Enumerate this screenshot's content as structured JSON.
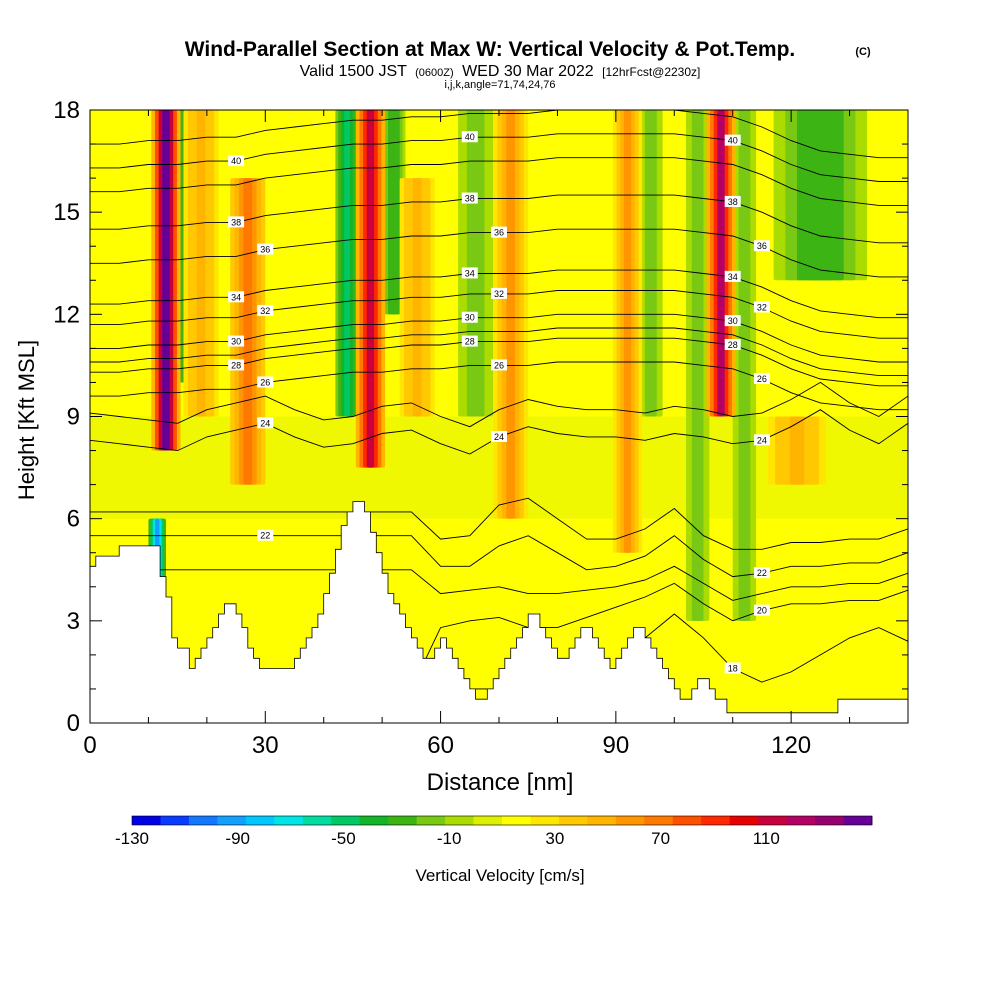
{
  "chart_data": {
    "type": "heatmap",
    "title": "Wind-Parallel Section at Max W: Vertical Velocity & Pot.Temp.",
    "title_mark": "(C)",
    "subtitle_valid": "Valid 1500 JST",
    "subtitle_utc": "(0600Z)",
    "subtitle_date": "WED 30 Mar 2022",
    "subtitle_fcst": "[12hrFcst@2230z]",
    "subtitle_indices": "i,j,k,angle=71,74,24,76",
    "xlabel": "Distance [nm]",
    "ylabel": "Height [Kft MSL]",
    "xlim": [
      0,
      140
    ],
    "ylim": [
      0,
      18
    ],
    "x_ticks": [
      0,
      30,
      60,
      90,
      120
    ],
    "y_ticks": [
      0,
      3,
      6,
      9,
      12,
      15,
      18
    ],
    "colorbar": {
      "label": "Vertical Velocity [cm/s]",
      "min": -130,
      "max": 150,
      "step": 10,
      "tick_labels": [
        -130,
        -90,
        -50,
        -10,
        30,
        70,
        110
      ],
      "colors": [
        "#0000e6",
        "#0a3cff",
        "#1478ff",
        "#14a0ff",
        "#00c8ff",
        "#00e6e6",
        "#00dca0",
        "#00c864",
        "#14b428",
        "#3cb414",
        "#78c814",
        "#aadc00",
        "#dcf000",
        "#ffff00",
        "#ffe600",
        "#ffc800",
        "#ffb400",
        "#ff9600",
        "#ff7800",
        "#ff5000",
        "#ff2800",
        "#e60000",
        "#c8003c",
        "#b40064",
        "#96006e",
        "#640096"
      ]
    },
    "updraft_columns": [
      {
        "x": 13,
        "w": 2.5,
        "z_bottom": 8,
        "z_top": 18,
        "value": 120
      },
      {
        "x": 19,
        "w": 3,
        "z_bottom": 9,
        "z_top": 18,
        "value": 30
      },
      {
        "x": 27,
        "w": 3,
        "z_bottom": 7,
        "z_top": 16,
        "value": 50
      },
      {
        "x": 48,
        "w": 2.5,
        "z_bottom": 7.5,
        "z_top": 18,
        "value": 90
      },
      {
        "x": 56,
        "w": 3,
        "z_bottom": 9,
        "z_top": 16,
        "value": 30
      },
      {
        "x": 72,
        "w": 3,
        "z_bottom": 6,
        "z_top": 18,
        "value": 40
      },
      {
        "x": 92,
        "w": 2.5,
        "z_bottom": 5,
        "z_top": 18,
        "value": 40
      },
      {
        "x": 108,
        "w": 2.5,
        "z_bottom": 9,
        "z_top": 18,
        "value": 100
      },
      {
        "x": 121,
        "w": 5,
        "z_bottom": 7,
        "z_top": 9,
        "value": 30
      }
    ],
    "downdraft_columns": [
      {
        "x": 11.5,
        "w": 1.5,
        "z_bottom": 3.5,
        "z_top": 6,
        "value": -100
      },
      {
        "x": 16,
        "w": 2,
        "z_bottom": 10,
        "z_top": 18,
        "value": -40
      },
      {
        "x": 44,
        "w": 2,
        "z_bottom": 9,
        "z_top": 18,
        "value": -60
      },
      {
        "x": 52,
        "w": 2,
        "z_bottom": 12,
        "z_top": 18,
        "value": -40
      },
      {
        "x": 66,
        "w": 3,
        "z_bottom": 9,
        "z_top": 18,
        "value": -30
      },
      {
        "x": 96,
        "w": 2,
        "z_bottom": 9,
        "z_top": 18,
        "value": -30
      },
      {
        "x": 104,
        "w": 2,
        "z_bottom": 3,
        "z_top": 18,
        "value": -30
      },
      {
        "x": 112,
        "w": 2,
        "z_bottom": 3,
        "z_top": 18,
        "value": -30
      },
      {
        "x": 125,
        "w": 8,
        "z_bottom": 13,
        "z_top": 18,
        "value": -40
      }
    ],
    "theta_contours": [
      {
        "label": "18",
        "z": [
          1.0,
          1.0,
          1.0,
          1.0,
          1.0,
          1.0,
          1.0,
          1.0,
          1.0,
          1.0,
          1.0,
          1.0,
          1.0,
          1.0,
          1.0,
          1.0,
          1.0,
          1.0,
          1.5,
          2.5,
          3.2,
          2.5,
          1.6,
          1.2,
          1.5,
          2.0,
          2.5,
          2.8,
          2.4
        ]
      },
      {
        "label": "20",
        "z": [
          1.0,
          1.0,
          1.0,
          1.0,
          1.0,
          1.0,
          1.0,
          1.0,
          1.0,
          1.0,
          1.0,
          1.0,
          2.8,
          3.0,
          3.1,
          2.8,
          2.8,
          3.1,
          3.4,
          3.7,
          4.1,
          3.5,
          3.0,
          3.3,
          3.5,
          3.5,
          3.6,
          3.6,
          3.9
        ]
      },
      {
        "label": "",
        "z": [
          4.5,
          4.5,
          4.5,
          4.5,
          4.5,
          4.5,
          4.5,
          4.5,
          4.5,
          4.5,
          4.5,
          4.5,
          3.8,
          3.9,
          4.0,
          3.8,
          3.8,
          3.9,
          4.0,
          4.2,
          4.6,
          4.1,
          3.6,
          3.8,
          4.0,
          4.0,
          4.1,
          4.1,
          4.4
        ]
      },
      {
        "label": "22",
        "z": [
          5.5,
          5.5,
          5.5,
          5.5,
          5.5,
          5.5,
          5.5,
          5.5,
          5.5,
          5.5,
          5.5,
          5.5,
          4.6,
          4.6,
          5.2,
          5.5,
          5.0,
          4.5,
          4.6,
          4.9,
          5.5,
          4.8,
          4.3,
          4.4,
          4.6,
          4.6,
          4.7,
          4.7,
          5.0
        ]
      },
      {
        "label": "",
        "z": [
          6.2,
          6.2,
          6.2,
          6.2,
          6.2,
          6.2,
          6.2,
          6.2,
          6.2,
          6.2,
          6.2,
          6.2,
          5.4,
          5.5,
          6.4,
          6.6,
          6.0,
          5.4,
          5.4,
          5.7,
          6.3,
          5.5,
          5.1,
          5.1,
          5.3,
          5.3,
          5.4,
          5.4,
          5.7
        ]
      },
      {
        "label": "24",
        "z": [
          8.3,
          8.2,
          8.1,
          8.0,
          8.4,
          8.6,
          8.8,
          8.4,
          8.1,
          8.2,
          8.5,
          8.6,
          8.2,
          7.9,
          8.4,
          8.7,
          8.5,
          8.4,
          8.4,
          8.3,
          8.5,
          8.4,
          8.2,
          8.3,
          8.7,
          9.2,
          8.6,
          8.2,
          8.8
        ]
      },
      {
        "label": "",
        "z": [
          9.1,
          9.0,
          8.9,
          8.8,
          9.2,
          9.4,
          9.6,
          9.2,
          8.9,
          9.0,
          9.3,
          9.4,
          9.0,
          8.7,
          9.2,
          9.5,
          9.3,
          9.2,
          9.2,
          9.1,
          9.3,
          9.2,
          9.0,
          9.1,
          9.5,
          10.0,
          9.4,
          9.0,
          9.6
        ]
      },
      {
        "label": "26",
        "z": [
          9.6,
          9.6,
          9.7,
          9.7,
          9.8,
          9.8,
          10.0,
          10.1,
          10.2,
          10.3,
          10.3,
          10.4,
          10.4,
          10.5,
          10.5,
          10.5,
          10.6,
          10.6,
          10.6,
          10.6,
          10.6,
          10.5,
          10.4,
          10.1,
          9.7,
          9.4,
          9.3,
          9.2,
          9.2
        ]
      },
      {
        "label": "28",
        "z": [
          10.3,
          10.3,
          10.4,
          10.4,
          10.5,
          10.5,
          10.7,
          10.8,
          10.9,
          11.0,
          11.0,
          11.1,
          11.1,
          11.2,
          11.2,
          11.2,
          11.3,
          11.3,
          11.3,
          11.3,
          11.3,
          11.2,
          11.1,
          10.8,
          10.4,
          10.1,
          10.0,
          9.9,
          9.9
        ]
      },
      {
        "label": "",
        "z": [
          10.6,
          10.6,
          10.7,
          10.7,
          10.8,
          10.8,
          11.0,
          11.1,
          11.2,
          11.3,
          11.3,
          11.4,
          11.4,
          11.5,
          11.5,
          11.5,
          11.6,
          11.6,
          11.6,
          11.6,
          11.6,
          11.5,
          11.4,
          11.1,
          10.7,
          10.4,
          10.3,
          10.2,
          10.2
        ]
      },
      {
        "label": "30",
        "z": [
          11.0,
          11.0,
          11.1,
          11.1,
          11.2,
          11.2,
          11.4,
          11.5,
          11.6,
          11.7,
          11.7,
          11.8,
          11.8,
          11.9,
          11.9,
          11.9,
          12.0,
          12.0,
          12.0,
          12.0,
          12.0,
          11.9,
          11.8,
          11.5,
          11.1,
          10.8,
          10.7,
          10.6,
          10.6
        ]
      },
      {
        "label": "32",
        "z": [
          11.7,
          11.7,
          11.8,
          11.8,
          11.9,
          11.9,
          12.1,
          12.2,
          12.3,
          12.4,
          12.4,
          12.5,
          12.5,
          12.6,
          12.6,
          12.6,
          12.7,
          12.7,
          12.7,
          12.7,
          12.7,
          12.6,
          12.5,
          12.2,
          11.8,
          11.5,
          11.4,
          11.3,
          11.3
        ]
      },
      {
        "label": "34",
        "z": [
          12.3,
          12.3,
          12.4,
          12.4,
          12.5,
          12.5,
          12.7,
          12.8,
          12.9,
          13.0,
          13.0,
          13.1,
          13.1,
          13.2,
          13.2,
          13.2,
          13.3,
          13.3,
          13.3,
          13.3,
          13.3,
          13.2,
          13.1,
          12.8,
          12.4,
          12.1,
          12.0,
          11.9,
          11.9
        ]
      },
      {
        "label": "36",
        "z": [
          13.5,
          13.5,
          13.6,
          13.6,
          13.7,
          13.7,
          13.9,
          14.0,
          14.1,
          14.2,
          14.2,
          14.3,
          14.3,
          14.4,
          14.4,
          14.4,
          14.5,
          14.5,
          14.5,
          14.5,
          14.5,
          14.4,
          14.3,
          14.0,
          13.6,
          13.3,
          13.2,
          13.1,
          13.1
        ]
      },
      {
        "label": "38",
        "z": [
          14.5,
          14.5,
          14.6,
          14.6,
          14.7,
          14.7,
          14.9,
          15.0,
          15.1,
          15.2,
          15.2,
          15.3,
          15.3,
          15.4,
          15.4,
          15.4,
          15.5,
          15.5,
          15.5,
          15.5,
          15.5,
          15.4,
          15.3,
          15.0,
          14.6,
          14.3,
          14.2,
          14.1,
          14.1
        ]
      },
      {
        "label": "",
        "z": [
          15.6,
          15.6,
          15.7,
          15.7,
          15.8,
          15.8,
          16.0,
          16.1,
          16.2,
          16.3,
          16.3,
          16.4,
          16.4,
          16.5,
          16.5,
          16.5,
          16.6,
          16.6,
          16.6,
          16.6,
          16.6,
          16.5,
          16.4,
          16.1,
          15.7,
          15.4,
          15.3,
          15.2,
          15.2
        ]
      },
      {
        "label": "40",
        "z": [
          16.3,
          16.3,
          16.4,
          16.4,
          16.5,
          16.5,
          16.7,
          16.8,
          16.9,
          17.0,
          17.0,
          17.1,
          17.1,
          17.2,
          17.2,
          17.2,
          17.3,
          17.3,
          17.3,
          17.3,
          17.3,
          17.2,
          17.1,
          16.8,
          16.4,
          16.1,
          16.0,
          15.9,
          15.9
        ]
      },
      {
        "label": "",
        "z": [
          17.0,
          17.0,
          17.1,
          17.1,
          17.2,
          17.2,
          17.4,
          17.5,
          17.6,
          17.7,
          17.7,
          17.8,
          17.8,
          17.9,
          17.9,
          17.9,
          18.0,
          18.0,
          18.0,
          18.0,
          18.0,
          17.9,
          17.8,
          17.5,
          17.1,
          16.8,
          16.7,
          16.6,
          16.6
        ]
      }
    ],
    "contour_x_step": 5,
    "terrain": {
      "x": [
        0,
        1,
        1,
        5,
        5,
        7,
        7,
        12,
        12,
        13,
        13,
        14,
        14,
        15,
        15,
        17,
        17,
        18,
        18,
        19,
        19,
        20,
        20,
        21,
        21,
        22,
        22,
        23,
        23,
        24,
        24,
        25,
        25,
        26,
        26,
        27,
        27,
        28,
        28,
        29,
        29,
        30,
        30,
        35,
        35,
        36,
        36,
        37,
        37,
        38,
        38,
        39,
        39,
        40,
        40,
        41,
        41,
        42,
        42,
        43,
        43,
        44,
        44,
        45,
        45,
        46,
        46,
        47,
        47,
        48,
        48,
        49,
        49,
        50,
        50,
        51,
        51,
        52,
        52,
        53,
        53,
        54,
        54,
        55,
        55,
        56,
        56,
        57,
        57,
        58,
        58,
        59,
        59,
        60,
        60,
        61,
        61,
        62,
        62,
        63,
        63,
        64,
        64,
        65,
        65,
        66,
        66,
        67,
        67,
        68,
        68,
        69,
        69,
        70,
        70,
        71,
        71,
        72,
        72,
        73,
        73,
        74,
        74,
        75,
        75,
        76,
        76,
        77,
        77,
        78,
        78,
        79,
        79,
        80,
        80,
        81,
        81,
        82,
        82,
        83,
        83,
        84,
        84,
        85,
        85,
        86,
        86,
        87,
        87,
        88,
        88,
        89,
        89,
        90,
        90,
        91,
        91,
        92,
        92,
        93,
        93,
        94,
        94,
        95,
        95,
        96,
        96,
        97,
        97,
        98,
        98,
        99,
        99,
        100,
        100,
        101,
        101,
        102,
        102,
        103,
        103,
        104,
        104,
        105,
        105,
        106,
        106,
        107,
        107,
        108,
        108,
        109,
        109,
        110,
        110,
        111,
        111,
        112,
        112,
        113,
        113,
        114,
        114,
        115,
        115,
        116,
        116,
        117,
        117,
        118,
        118,
        119,
        119,
        120,
        120,
        121,
        121,
        122,
        122,
        123,
        123,
        124,
        124,
        125,
        125,
        126,
        126,
        127,
        127,
        128,
        128,
        129,
        129,
        130,
        130,
        131,
        131,
        132,
        132,
        133,
        133,
        134,
        134,
        135,
        135,
        136,
        136,
        137,
        137,
        138,
        138,
        139,
        139,
        140
      ],
      "z": [
        4.6,
        4.6,
        4.9,
        4.9,
        5.2,
        5.2,
        5.2,
        5.2,
        4.3,
        4.3,
        3.7,
        3.7,
        2.5,
        2.5,
        2.2,
        2.2,
        1.6,
        1.6,
        1.9,
        1.9,
        2.2,
        2.2,
        2.5,
        2.5,
        2.8,
        2.8,
        3.2,
        3.2,
        3.5,
        3.5,
        3.5,
        3.5,
        3.2,
        3.2,
        2.8,
        2.8,
        2.2,
        2.2,
        1.9,
        1.9,
        1.6,
        1.6,
        1.6,
        1.6,
        1.9,
        1.9,
        2.2,
        2.2,
        2.5,
        2.5,
        2.8,
        2.8,
        3.2,
        3.2,
        3.8,
        3.8,
        4.4,
        4.4,
        5.1,
        5.1,
        5.8,
        5.8,
        6.2,
        6.2,
        6.5,
        6.5,
        6.5,
        6.5,
        6.2,
        6.2,
        5.6,
        5.6,
        5.0,
        5.0,
        4.4,
        4.4,
        3.8,
        3.8,
        3.5,
        3.5,
        3.2,
        3.2,
        2.8,
        2.8,
        2.5,
        2.5,
        2.2,
        2.2,
        1.9,
        1.9,
        1.9,
        1.9,
        2.2,
        2.2,
        2.5,
        2.5,
        2.2,
        2.2,
        1.9,
        1.9,
        1.6,
        1.6,
        1.3,
        1.3,
        1.0,
        1.0,
        0.7,
        0.7,
        0.7,
        0.7,
        1.0,
        1.0,
        1.3,
        1.3,
        1.6,
        1.6,
        1.9,
        1.9,
        2.2,
        2.2,
        2.5,
        2.5,
        2.8,
        2.8,
        3.2,
        3.2,
        3.2,
        3.2,
        2.8,
        2.8,
        2.5,
        2.5,
        2.2,
        2.2,
        1.9,
        1.9,
        1.9,
        1.9,
        2.2,
        2.2,
        2.5,
        2.5,
        2.8,
        2.8,
        2.8,
        2.8,
        2.5,
        2.5,
        2.2,
        2.2,
        1.9,
        1.9,
        1.6,
        1.6,
        1.9,
        1.9,
        2.2,
        2.2,
        2.5,
        2.5,
        2.8,
        2.8,
        2.8,
        2.8,
        2.5,
        2.5,
        2.2,
        2.2,
        1.9,
        1.9,
        1.6,
        1.6,
        1.3,
        1.3,
        1.0,
        1.0,
        0.7,
        0.7,
        0.7,
        0.7,
        1.0,
        1.0,
        1.3,
        1.3,
        1.3,
        1.3,
        1.0,
        1.0,
        0.7,
        0.7,
        0.7,
        0.7,
        0.3,
        0.3,
        0.3,
        0.3,
        0.3,
        0.3,
        0.3,
        0.3,
        0.3,
        0.3,
        0.3,
        0.3,
        0.3,
        0.3,
        0.3,
        0.3,
        0.3,
        0.3,
        0.3,
        0.3,
        0.3,
        0.3,
        0.3,
        0.3,
        0.3,
        0.3,
        0.3,
        0.3,
        0.3,
        0.3,
        0.3,
        0.3,
        0.3,
        0.3,
        0.3,
        0.3,
        0.3,
        0.3,
        0.7,
        0.7,
        0.7,
        0.7,
        0.7,
        0.7,
        0.7,
        0.7,
        0.7,
        0.7,
        0.7,
        0.7,
        0.7,
        0.7,
        0.7,
        0.7,
        0.7,
        0.7,
        0.7,
        0.7,
        0.7,
        0.7,
        0.7,
        0.7,
        0.7,
        0.7,
        0.7,
        0.7,
        0.7,
        0.7
      ]
    },
    "legend": "bottom-colorbar",
    "grid": false
  }
}
